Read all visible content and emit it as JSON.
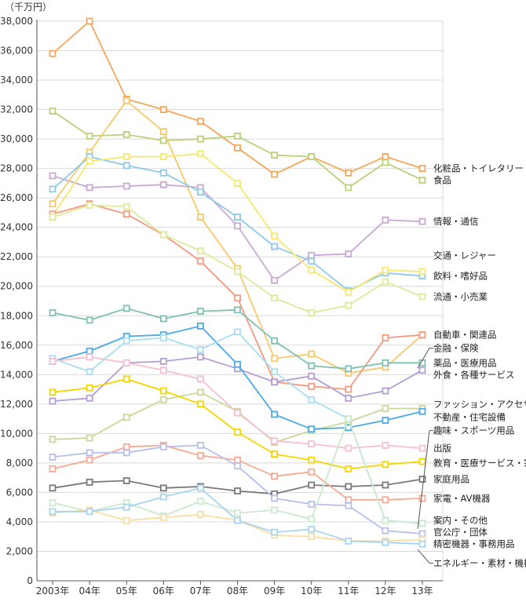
{
  "chart_data": {
    "type": "line",
    "unit_label": "（千万円）",
    "x": [
      "2003年",
      "04年",
      "05年",
      "06年",
      "07年",
      "08年",
      "09年",
      "10年",
      "11年",
      "12年",
      "13年"
    ],
    "ylim": [
      0,
      38000
    ],
    "yticks": [
      0,
      2000,
      4000,
      6000,
      8000,
      10000,
      12000,
      14000,
      16000,
      18000,
      20000,
      22000,
      24000,
      26000,
      28000,
      30000,
      32000,
      34000,
      36000,
      38000
    ],
    "ytick_labels": [
      "0",
      "2,000",
      "4,000",
      "6,000",
      "8,000",
      "10,000",
      "12,000",
      "14,000",
      "16,000",
      "18,000",
      "20,000",
      "22,000",
      "24,000",
      "26,000",
      "28,000",
      "30,000",
      "32,000",
      "34,000",
      "36,000",
      "38,000"
    ],
    "grid": true,
    "series": [
      {
        "name": "化粧品・トイレタリー",
        "color": "#f5a65b",
        "values": [
          35800,
          38000,
          32700,
          32000,
          31200,
          29400,
          27600,
          28800,
          27700,
          28800,
          28000
        ]
      },
      {
        "name": "食品",
        "color": "#b8d27a",
        "values": [
          31900,
          30200,
          30300,
          29900,
          30000,
          30200,
          28900,
          28800,
          26700,
          28400,
          27200
        ]
      },
      {
        "name": "情報・通信",
        "color": "#c9a8d4",
        "values": [
          27500,
          26700,
          26800,
          26900,
          26700,
          24100,
          20400,
          22100,
          22200,
          24500,
          24400
        ]
      },
      {
        "name": "交通・レジャー",
        "color": "#f9c86a",
        "values": [
          25600,
          29100,
          32600,
          30500,
          24700,
          21200,
          15100,
          15400,
          14100,
          14500,
          16700
        ]
      },
      {
        "name": "飲料・嗜好品",
        "color": "#8fc8e8",
        "values": [
          26600,
          28800,
          28200,
          27700,
          26400,
          24700,
          22700,
          21700,
          19700,
          20900,
          20700
        ]
      },
      {
        "name": "流通・小売業",
        "color": "#f7e76a",
        "values": [
          24800,
          28500,
          28800,
          28800,
          29000,
          27000,
          23400,
          21100,
          19600,
          21100,
          21000
        ]
      },
      {
        "name": "自動車・関連品",
        "color": "#f39a80",
        "values": [
          24900,
          25600,
          24900,
          23500,
          21700,
          19200,
          13500,
          13200,
          13000,
          16500,
          16700
        ]
      },
      {
        "name": "金融・保険",
        "color": "#7fc0b5",
        "values": [
          18200,
          17700,
          18500,
          17800,
          18300,
          18400,
          16300,
          14600,
          14400,
          14800,
          14800
        ]
      },
      {
        "name": "薬品・医療用品",
        "color": "#dfe99a",
        "values": [
          24700,
          25500,
          25400,
          23500,
          22400,
          21000,
          19200,
          18200,
          18700,
          20300,
          19300
        ]
      },
      {
        "name": "外食・各種サービス",
        "color": "#b49ed3",
        "values": [
          12200,
          12400,
          14800,
          14900,
          15200,
          14400,
          13500,
          13900,
          12400,
          12900,
          14300
        ]
      },
      {
        "name": "ファッション・アクセサリー",
        "color": "#c7d99a",
        "values": [
          9600,
          9700,
          11100,
          12300,
          12800,
          11500,
          9400,
          10200,
          10800,
          11700,
          11700
        ]
      },
      {
        "name": "不動産・住宅設備",
        "color": "#4aaae8",
        "values": [
          14900,
          15600,
          16600,
          16700,
          17300,
          14700,
          11300,
          10300,
          10400,
          10900,
          11500
        ]
      },
      {
        "name": "趣味・スポーツ用品",
        "color": "#a9ddf2",
        "values": [
          15100,
          14200,
          16300,
          16500,
          15700,
          16900,
          14200,
          12300,
          11000,
          4100,
          3900
        ]
      },
      {
        "name": "出版",
        "color": "#f6bfd3",
        "values": [
          14900,
          15200,
          14800,
          14300,
          13700,
          11400,
          9500,
          9300,
          9000,
          9200,
          9000
        ]
      },
      {
        "name": "教育・医療サービス・宗教",
        "color": "#f5d500",
        "values": [
          12800,
          13100,
          13700,
          12900,
          12000,
          10100,
          8600,
          8200,
          7600,
          7900,
          8100
        ]
      },
      {
        "name": "家庭用品",
        "color": "#7a7a7a",
        "values": [
          6300,
          6700,
          6800,
          6300,
          6400,
          6100,
          5900,
          6500,
          6400,
          6500,
          6900
        ]
      },
      {
        "name": "家電・AV機器",
        "color": "#f7aa93",
        "values": [
          7600,
          8200,
          9100,
          9200,
          8500,
          8200,
          7100,
          7400,
          5500,
          5500,
          5600
        ]
      },
      {
        "name": "案内・その他",
        "color": "#b7c1ec",
        "values": [
          8400,
          8700,
          8700,
          9100,
          9200,
          7800,
          5600,
          5200,
          5100,
          3400,
          3200
        ]
      },
      {
        "name": "官公庁・団体",
        "color": "#cbe9cc",
        "values": [
          5300,
          4700,
          5300,
          4400,
          5400,
          4600,
          4800,
          4200,
          11000,
          4100,
          3900
        ]
      },
      {
        "name": "精密機器・事務用品",
        "color": "#f9dda4",
        "values": [
          4600,
          4800,
          4100,
          4300,
          4500,
          4100,
          3100,
          3000,
          2700,
          2700,
          2800
        ]
      },
      {
        "name": "エネルギー・素材・機械",
        "color": "#a9d4ef",
        "values": [
          4700,
          4700,
          5000,
          5700,
          6300,
          4100,
          3300,
          3500,
          2700,
          2600,
          2500
        ]
      }
    ]
  },
  "series_labels": [
    {
      "text": "化粧品・トイレタリー",
      "series": 0,
      "value": 28000,
      "leader": false
    },
    {
      "text": "食品",
      "series": 1,
      "value": 27200,
      "leader": false
    },
    {
      "text": "情報・通信",
      "series": 2,
      "value": 24400,
      "leader": false
    },
    {
      "text": "交通・レジャー",
      "series": 3,
      "value": 22100,
      "leader": false
    },
    {
      "text": "飲料・嗜好品",
      "series": 4,
      "value": 20700,
      "leader": false
    },
    {
      "text": "流通・小売業",
      "series": 8,
      "value": 19300,
      "leader": false
    },
    {
      "text": "自動車・関連品",
      "series": 6,
      "value": 16700,
      "leader": false
    },
    {
      "text": "金融・保険",
      "series": 7,
      "value": 15800,
      "leader": true
    },
    {
      "text": "薬品・医療用品",
      "series": 7,
      "value": 14800,
      "leader": false
    },
    {
      "text": "外食・各種サービス",
      "series": 9,
      "value": 14000,
      "leader": false
    },
    {
      "text": "ファッション・アクセサリー",
      "series": 10,
      "value": 12000,
      "leader": false
    },
    {
      "text": "不動産・住宅設備",
      "series": 11,
      "value": 11100,
      "leader": false
    },
    {
      "text": "趣味・スポーツ用品",
      "series": 12,
      "value": 10200,
      "leader": true
    },
    {
      "text": "出版",
      "series": 13,
      "value": 9000,
      "leader": false
    },
    {
      "text": "教育・医療サービス・宗教",
      "series": 14,
      "value": 8000,
      "leader": false
    },
    {
      "text": "家庭用品",
      "series": 15,
      "value": 6900,
      "leader": false
    },
    {
      "text": "家電・AV機器",
      "series": 16,
      "value": 5600,
      "leader": false
    },
    {
      "text": "案内・その他",
      "series": 17,
      "value": 4100,
      "leader": false
    },
    {
      "text": "官公庁・団体",
      "series": 18,
      "value": 3300,
      "leader": false
    },
    {
      "text": "精密機器・事務用品",
      "series": 19,
      "value": 2500,
      "leader": false
    },
    {
      "text": "エネルギー・素材・機械",
      "series": 20,
      "value": 1200,
      "leader": true
    }
  ]
}
